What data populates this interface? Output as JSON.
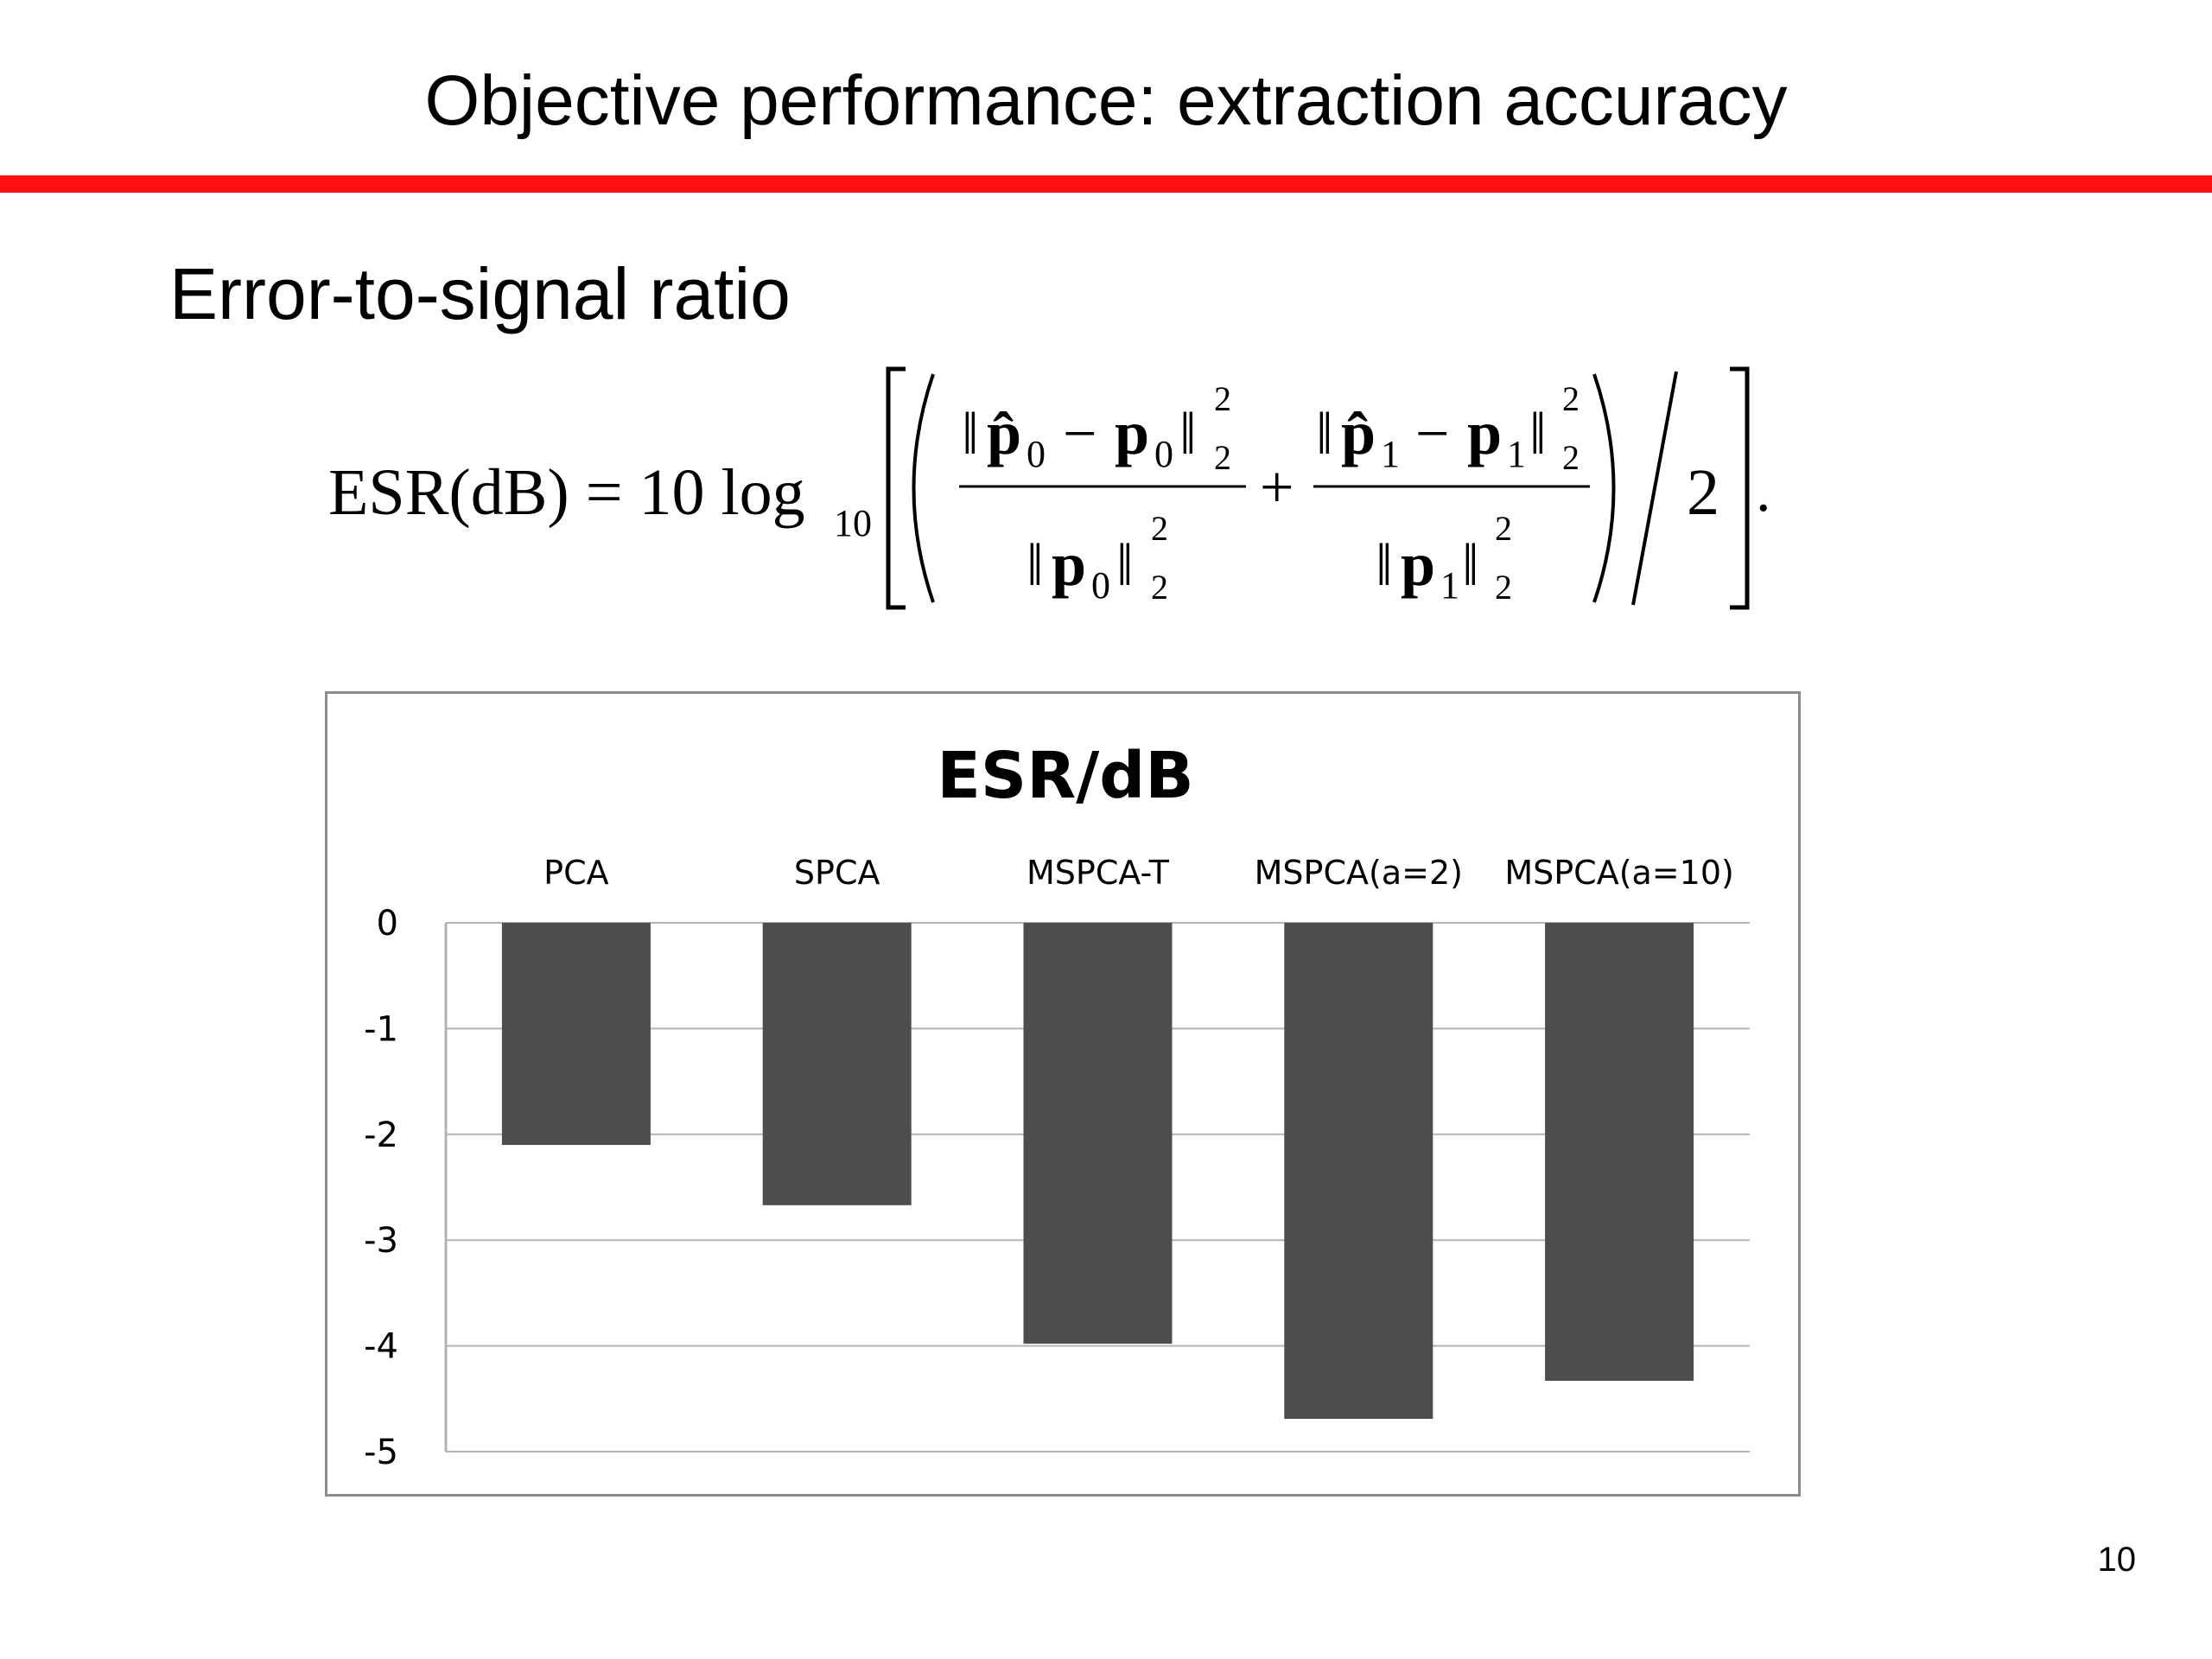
{
  "slide": {
    "title": "Objective performance: extraction accuracy",
    "subheading": "Error-to-signal ratio",
    "page_number": "10"
  },
  "formula": {
    "lhs": "ESR(dB) = 10 log",
    "log_base": "10",
    "divisor": "2",
    "latex": "\\mathrm{ESR(dB)} = 10\\log_{10}\\left[\\left(\\frac{\\|\\hat{\\mathbf{p}}_0-\\mathbf{p}_0\\|_2^2}{\\|\\mathbf{p}_0\\|_2^2}+\\frac{\\|\\hat{\\mathbf{p}}_1-\\mathbf{p}_1\\|_2^2}{\\|\\mathbf{p}_1\\|_2^2}\\right)\\Big/2\\right]."
  },
  "colors": {
    "accent_rule": "#ff1010",
    "bar": "#4d4d4d",
    "grid": "#b3b3b3",
    "frame": "#8c8c8c"
  },
  "chart_data": {
    "type": "bar",
    "title": "ESR/dB",
    "categories": [
      "PCA",
      "SPCA",
      "MSPCA-T",
      "MSPCA(a=2)",
      "MSPCA(a=10)"
    ],
    "values": [
      -2.1,
      -2.67,
      -3.98,
      -4.69,
      -4.33
    ],
    "ylim": [
      -5,
      0
    ],
    "yticks": [
      "0",
      "-1",
      "-2",
      "-3",
      "-4",
      "-5"
    ],
    "xlabel": "",
    "ylabel": "",
    "category_labels_position": "top",
    "grid": true,
    "legend": "none"
  }
}
